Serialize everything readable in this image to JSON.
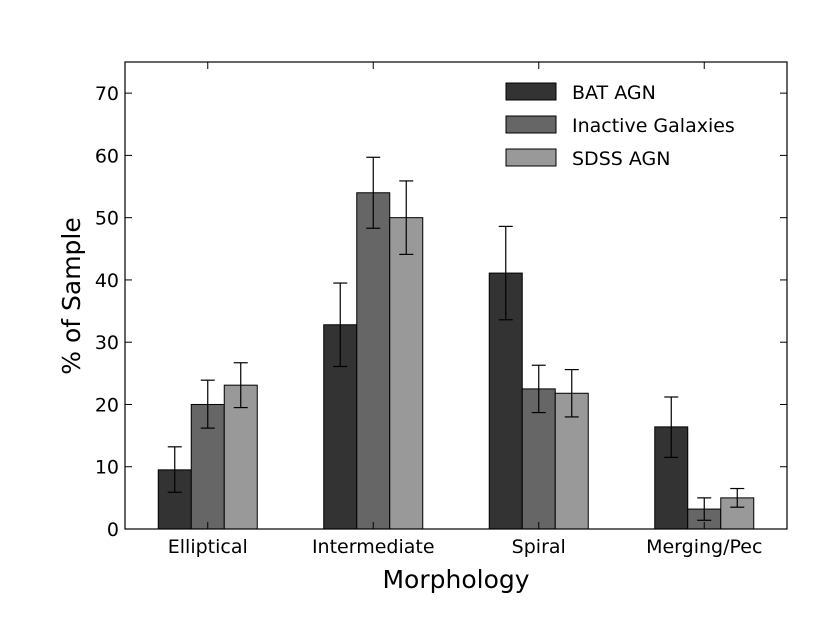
{
  "chart_data": {
    "type": "bar",
    "title": "",
    "xlabel": "Morphology",
    "ylabel": "% of Sample",
    "ylim": [
      0,
      75
    ],
    "yticks": [
      0,
      10,
      20,
      30,
      40,
      50,
      60,
      70
    ],
    "grid": false,
    "legend_position": "top-right",
    "categories": [
      "Elliptical",
      "Intermediate",
      "Spiral",
      "Merging/Pec"
    ],
    "series": [
      {
        "name": "BAT AGN",
        "color": "#333333",
        "values": [
          9.5,
          32.8,
          41.1,
          16.4
        ],
        "err_low": [
          3.6,
          6.7,
          7.5,
          4.9
        ],
        "err_high": [
          3.7,
          6.7,
          7.5,
          4.8
        ]
      },
      {
        "name": "Inactive Galaxies",
        "color": "#666666",
        "values": [
          20.0,
          54.0,
          22.5,
          3.2
        ],
        "err_low": [
          3.8,
          5.7,
          3.8,
          1.8
        ],
        "err_high": [
          3.9,
          5.7,
          3.8,
          1.8
        ]
      },
      {
        "name": "SDSS AGN",
        "color": "#999999",
        "values": [
          23.1,
          50.0,
          21.8,
          5.0
        ],
        "err_low": [
          3.6,
          5.9,
          3.8,
          1.5
        ],
        "err_high": [
          3.6,
          5.9,
          3.8,
          1.5
        ]
      }
    ]
  }
}
